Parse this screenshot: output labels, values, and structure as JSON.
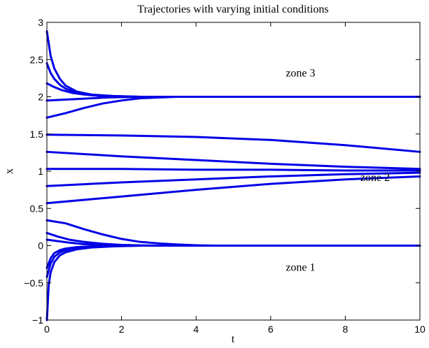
{
  "chart_data": {
    "type": "line",
    "title": "Trajectories with varying initial conditions",
    "xlabel": "t",
    "ylabel": "x",
    "xlim": [
      0,
      10
    ],
    "ylim": [
      -1,
      3
    ],
    "xticks": [
      0,
      2,
      4,
      6,
      8,
      10
    ],
    "yticks": [
      -1,
      -0.5,
      0,
      0.5,
      1,
      1.5,
      2,
      2.5,
      3
    ],
    "xtick_labels": [
      "0",
      "2",
      "4",
      "6",
      "8",
      "10"
    ],
    "ytick_labels": [
      "−1",
      "−0.5",
      "0",
      "0.5",
      "1",
      "1.5",
      "2",
      "2.5",
      "3"
    ],
    "grid": false,
    "line_color": "#0000e6",
    "annotations": [
      {
        "text": "zone 3",
        "x": 6.8,
        "y": 2.27
      },
      {
        "text": "zone 2",
        "x": 8.8,
        "y": 0.87
      },
      {
        "text": "zone 1",
        "x": 6.8,
        "y": -0.34
      }
    ],
    "series": [
      {
        "x": [
          0,
          0.1,
          0.2,
          0.35,
          0.5,
          0.8,
          1.2,
          1.8,
          2.5,
          10
        ],
        "y": [
          2.88,
          2.55,
          2.38,
          2.24,
          2.15,
          2.07,
          2.03,
          2.01,
          2.0,
          2.0
        ]
      },
      {
        "x": [
          0,
          0.1,
          0.2,
          0.35,
          0.5,
          0.8,
          1.2,
          1.8,
          2.5,
          10
        ],
        "y": [
          2.45,
          2.32,
          2.24,
          2.16,
          2.11,
          2.05,
          2.02,
          2.01,
          2.0,
          2.0
        ]
      },
      {
        "x": [
          0,
          0.2,
          0.4,
          0.7,
          1.0,
          1.5,
          2.2,
          3.0,
          10
        ],
        "y": [
          2.18,
          2.13,
          2.09,
          2.05,
          2.03,
          2.01,
          2.0,
          2.0,
          2.0
        ]
      },
      {
        "x": [
          0,
          0.4,
          0.8,
          1.2,
          1.6,
          2.0,
          2.6,
          3.5,
          10
        ],
        "y": [
          1.95,
          1.96,
          1.97,
          1.98,
          1.99,
          1.995,
          2.0,
          2.0,
          2.0
        ]
      },
      {
        "x": [
          0,
          0.5,
          1.0,
          1.5,
          2.0,
          2.5,
          3.0,
          3.5,
          4.0,
          10
        ],
        "y": [
          1.72,
          1.78,
          1.85,
          1.91,
          1.95,
          1.98,
          1.99,
          2.0,
          2.0,
          2.0
        ]
      },
      {
        "x": [
          0,
          2,
          4,
          6,
          8,
          10
        ],
        "y": [
          1.49,
          1.48,
          1.46,
          1.42,
          1.35,
          1.26
        ]
      },
      {
        "x": [
          0,
          2,
          4,
          6,
          8,
          10
        ],
        "y": [
          1.26,
          1.2,
          1.15,
          1.1,
          1.06,
          1.03
        ]
      },
      {
        "x": [
          0,
          2,
          4,
          6,
          8,
          10
        ],
        "y": [
          1.03,
          1.03,
          1.02,
          1.02,
          1.01,
          1.01
        ]
      },
      {
        "x": [
          0,
          2,
          4,
          6,
          8,
          10
        ],
        "y": [
          0.8,
          0.85,
          0.89,
          0.93,
          0.96,
          0.98
        ]
      },
      {
        "x": [
          0,
          2,
          4,
          6,
          8,
          10
        ],
        "y": [
          0.57,
          0.66,
          0.75,
          0.83,
          0.89,
          0.93
        ]
      },
      {
        "x": [
          0,
          0.5,
          1.0,
          1.5,
          2.0,
          2.5,
          3.0,
          3.5,
          4.0,
          4.5,
          10
        ],
        "y": [
          0.34,
          0.3,
          0.22,
          0.15,
          0.09,
          0.05,
          0.03,
          0.015,
          0.005,
          0.0,
          0.0
        ]
      },
      {
        "x": [
          0,
          0.3,
          0.6,
          1.0,
          1.5,
          2.0,
          2.5,
          3.0,
          10
        ],
        "y": [
          0.17,
          0.12,
          0.08,
          0.05,
          0.025,
          0.01,
          0.003,
          0.0,
          0.0
        ]
      },
      {
        "x": [
          0,
          0.3,
          0.6,
          1.0,
          1.5,
          2.0,
          2.5,
          10
        ],
        "y": [
          0.08,
          0.06,
          0.04,
          0.02,
          0.01,
          0.004,
          0.0,
          0.0
        ]
      },
      {
        "x": [
          0,
          0.1,
          0.2,
          0.35,
          0.5,
          0.8,
          1.2,
          1.8,
          2.5,
          10
        ],
        "y": [
          -0.3,
          -0.17,
          -0.1,
          -0.06,
          -0.04,
          -0.02,
          -0.01,
          -0.003,
          0.0,
          0.0
        ]
      },
      {
        "x": [
          0,
          0.1,
          0.2,
          0.35,
          0.5,
          0.8,
          1.2,
          1.8,
          2.5,
          10
        ],
        "y": [
          -0.42,
          -0.24,
          -0.15,
          -0.09,
          -0.06,
          -0.03,
          -0.015,
          -0.005,
          0.0,
          0.0
        ]
      },
      {
        "x": [
          0,
          0.05,
          0.1,
          0.2,
          0.35,
          0.5,
          0.8,
          1.2,
          1.8,
          2.5,
          10
        ],
        "y": [
          -1.0,
          -0.52,
          -0.36,
          -0.22,
          -0.13,
          -0.09,
          -0.05,
          -0.025,
          -0.01,
          0.0,
          0.0
        ]
      }
    ]
  }
}
